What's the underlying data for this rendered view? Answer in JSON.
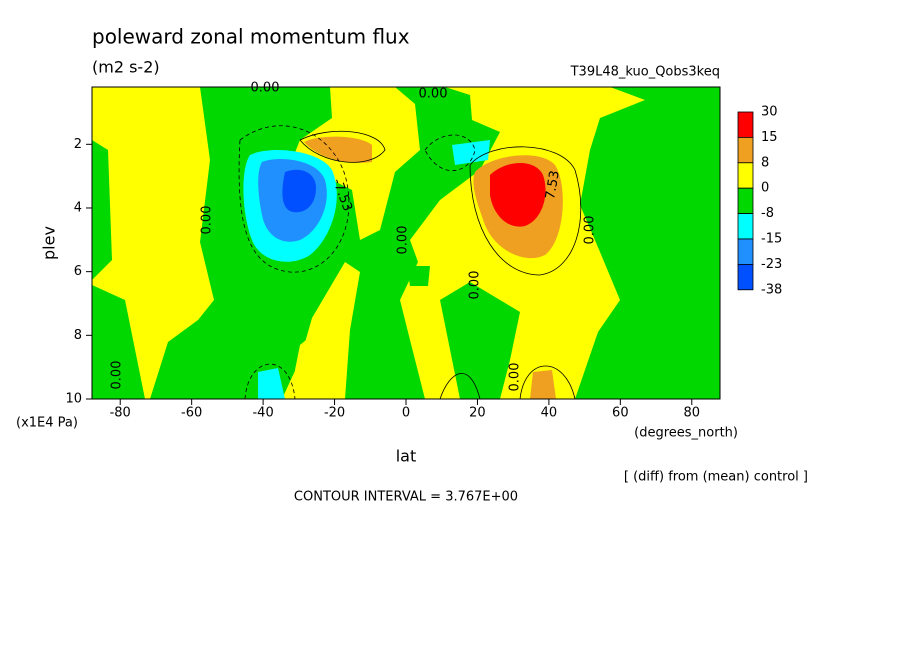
{
  "chart_data": {
    "type": "contour",
    "title": "poleward zonal momentum flux",
    "subtitle": "(m2 s-2)",
    "dataset": "T39L48_kuo_Qobs3keq",
    "x_label": "lat",
    "x_units": "(degrees_north)",
    "y_label": "plev",
    "y_units": "(x1E4 Pa)",
    "note": "[ (diff) from (mean) control ]",
    "contour_interval": "CONTOUR INTERVAL = 3.767E+00",
    "xlim": [
      -87.9,
      87.9
    ],
    "xticks": [
      -80,
      -60,
      -40,
      -20,
      0,
      20,
      40,
      60,
      80
    ],
    "ylim": [
      0.2,
      10
    ],
    "yticks": [
      2,
      4,
      6,
      8,
      10
    ],
    "colorbar": {
      "levels": [
        30,
        15,
        8,
        0,
        -8,
        -15,
        -23,
        -38
      ],
      "colors": [
        "#ff0000",
        "#f0a020",
        "#ffff00",
        "#00d800",
        "#00ffff",
        "#2090ff",
        "#0050ff"
      ]
    },
    "contour_labels": [
      {
        "value": 0,
        "label": "0.00"
      },
      {
        "value": 0,
        "label": "0.00"
      },
      {
        "value": 0,
        "label": "0.00"
      },
      {
        "value": 0,
        "label": "0.00"
      },
      {
        "value": 0,
        "label": "0.00"
      },
      {
        "value": 0,
        "label": "0.00"
      },
      {
        "value": 0,
        "label": "0.00"
      },
      {
        "value": 0,
        "label": "0.00"
      },
      {
        "value": -7.53,
        "label": "-7.53"
      },
      {
        "value": 7.53,
        "label": "7.53"
      }
    ]
  }
}
